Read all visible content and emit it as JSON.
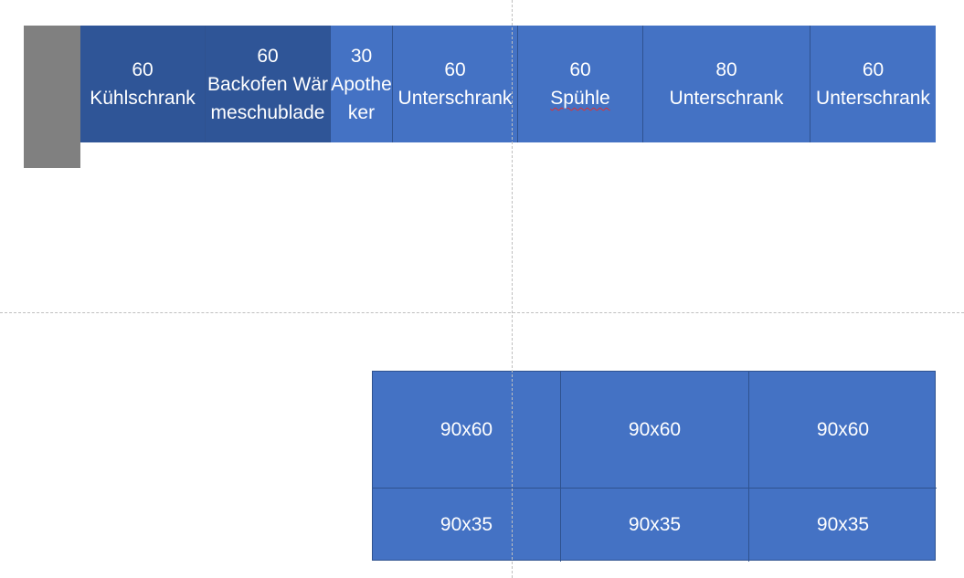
{
  "base_cabinets": [
    {
      "width": "60",
      "name": "Kühlschrank"
    },
    {
      "width": "60",
      "name": "Backofen Wärmeschublade"
    },
    {
      "width": "30",
      "name": "Apotheker"
    },
    {
      "width": "60",
      "name": "Unterschrank"
    },
    {
      "width": "60",
      "name": "Spühle"
    },
    {
      "width": "80",
      "name": "Unterschrank"
    },
    {
      "width": "60",
      "name": "Unterschrank"
    }
  ],
  "island": {
    "top_row": [
      "90x60",
      "90x60",
      "90x60"
    ],
    "bottom_row": [
      "90x35",
      "90x35",
      "90x35"
    ]
  },
  "colors": {
    "dark_blue": "#2f5597",
    "blue": "#4472c4",
    "wall_gray": "#808080",
    "white_text": "#ffffff"
  }
}
